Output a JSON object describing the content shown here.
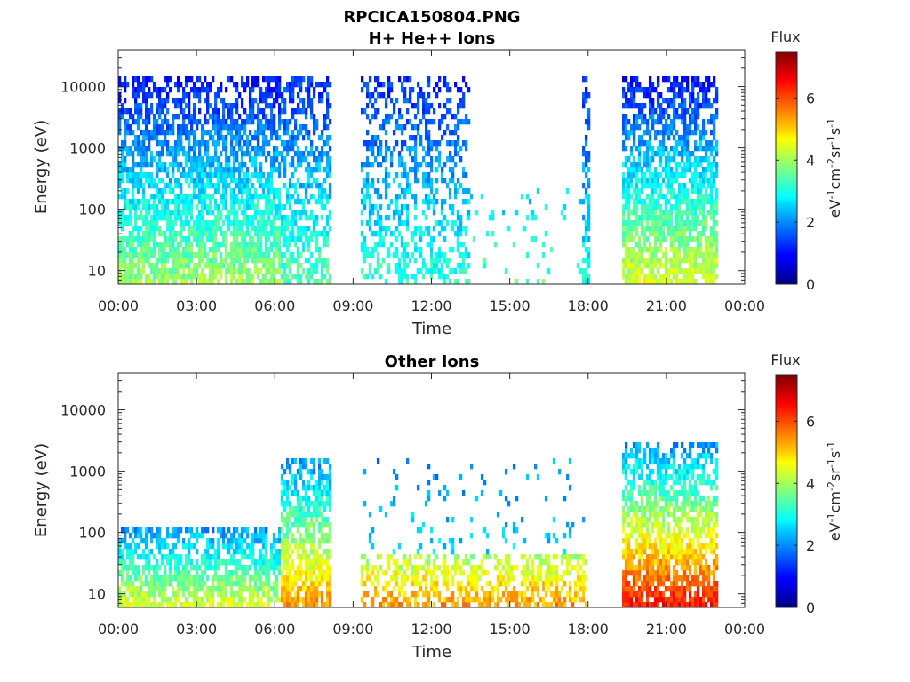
{
  "chart_data": [
    {
      "type": "heatmap",
      "title": "RPCICA150804.PNG",
      "subtitle": "H+ He++ Ions",
      "xlabel": "Time",
      "ylabel": "Energy (eV)",
      "x_ticks": [
        "00:00",
        "03:00",
        "06:00",
        "09:00",
        "12:00",
        "15:00",
        "18:00",
        "21:00",
        "00:00"
      ],
      "xlim_hours": [
        0,
        24
      ],
      "y_scale": "log",
      "y_ticks": [
        "10",
        "100",
        "1000",
        "10000"
      ],
      "ylim": [
        6,
        40000
      ],
      "colorbar": {
        "title": "Flux",
        "label": "eV-1cm-2sr-1s-1",
        "ticks": [
          "0",
          "2",
          "4",
          "6"
        ],
        "range": [
          0,
          7.5
        ],
        "colormap": "jet"
      },
      "data_gaps_hours": [
        [
          8.2,
          9.3
        ],
        [
          18.1,
          19.3
        ],
        [
          23.0,
          24.0
        ]
      ],
      "regions": [
        {
          "t_start_hours": 0.0,
          "t_end_hours": 6.2,
          "e_min_ev": 6,
          "e_max_ev": 15000,
          "flux_low_energy": 4.0,
          "flux_high_energy": 1.0,
          "density": "dense"
        },
        {
          "t_start_hours": 6.2,
          "t_end_hours": 8.2,
          "e_min_ev": 6,
          "e_max_ev": 15000,
          "flux_low_energy": 3.5,
          "flux_high_energy": 1.2,
          "density": "striped"
        },
        {
          "t_start_hours": 9.3,
          "t_end_hours": 13.5,
          "e_min_ev": 6,
          "e_max_ev": 15000,
          "flux_low_energy": 3.2,
          "flux_high_energy": 1.2,
          "density": "sparse-striped"
        },
        {
          "t_start_hours": 13.5,
          "t_end_hours": 17.8,
          "e_min_ev": 6,
          "e_max_ev": 200,
          "flux_low_energy": 3.5,
          "flux_high_energy": 2.5,
          "density": "very-sparse"
        },
        {
          "t_start_hours": 17.8,
          "t_end_hours": 18.1,
          "e_min_ev": 6,
          "e_max_ev": 15000,
          "flux_low_energy": 3.0,
          "flux_high_energy": 1.2,
          "density": "striped"
        },
        {
          "t_start_hours": 19.3,
          "t_end_hours": 23.0,
          "e_min_ev": 6,
          "e_max_ev": 15000,
          "flux_low_energy": 4.5,
          "flux_high_energy": 1.0,
          "density": "dense"
        }
      ]
    },
    {
      "type": "heatmap",
      "title": "Other Ions",
      "xlabel": "Time",
      "ylabel": "Energy (eV)",
      "x_ticks": [
        "00:00",
        "03:00",
        "06:00",
        "09:00",
        "12:00",
        "15:00",
        "18:00",
        "21:00",
        "00:00"
      ],
      "xlim_hours": [
        0,
        24
      ],
      "y_scale": "log",
      "y_ticks": [
        "10",
        "100",
        "1000",
        "10000"
      ],
      "ylim": [
        6,
        40000
      ],
      "colorbar": {
        "title": "Flux",
        "label": "eV-1cm-2sr-1s-1",
        "ticks": [
          "0",
          "2",
          "4",
          "6"
        ],
        "range": [
          0,
          7.5
        ],
        "colormap": "jet"
      },
      "data_gaps_hours": [
        [
          8.2,
          9.3
        ],
        [
          18.1,
          19.3
        ],
        [
          23.0,
          24.0
        ]
      ],
      "regions": [
        {
          "t_start_hours": 0.0,
          "t_end_hours": 6.2,
          "e_min_ev": 6,
          "e_max_ev": 120,
          "flux_low_energy": 4.5,
          "flux_high_energy": 2.0,
          "density": "dense"
        },
        {
          "t_start_hours": 6.2,
          "t_end_hours": 8.2,
          "e_min_ev": 6,
          "e_max_ev": 1500,
          "flux_low_energy": 5.5,
          "flux_high_energy": 2.0,
          "density": "dense"
        },
        {
          "t_start_hours": 9.3,
          "t_end_hours": 18.0,
          "e_min_ev": 6,
          "e_max_ev": 45,
          "flux_low_energy": 5.5,
          "flux_high_energy": 4.0,
          "density": "striped"
        },
        {
          "t_start_hours": 9.3,
          "t_end_hours": 18.0,
          "e_min_ev": 45,
          "e_max_ev": 1500,
          "flux_low_energy": 2.5,
          "flux_high_energy": 2.0,
          "density": "very-sparse"
        },
        {
          "t_start_hours": 19.3,
          "t_end_hours": 23.0,
          "e_min_ev": 6,
          "e_max_ev": 3000,
          "flux_low_energy": 6.5,
          "flux_high_energy": 2.0,
          "density": "dense"
        }
      ]
    }
  ]
}
